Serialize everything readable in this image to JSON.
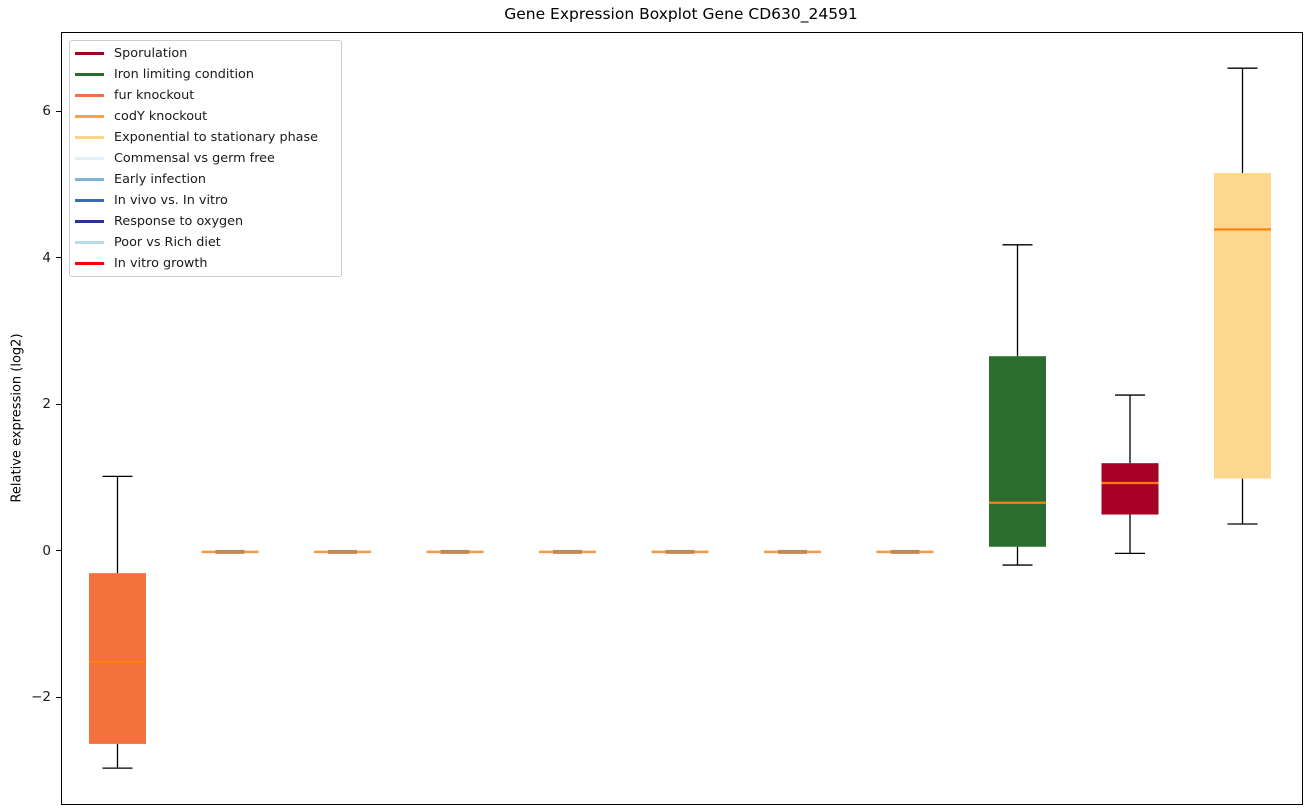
{
  "chart_data": {
    "type": "boxplot",
    "title": "Gene Expression Boxplot Gene CD630_24591",
    "ylabel": "Relative expression (log2)",
    "xlabel": "",
    "grid": false,
    "x_tick_labels": [],
    "ylim": [
      -3.44,
      7.08
    ],
    "yticks": [
      {
        "value": -2,
        "label": "−2"
      },
      {
        "value": 0,
        "label": "0"
      },
      {
        "value": 2,
        "label": "2"
      },
      {
        "value": 4,
        "label": "4"
      },
      {
        "value": 6,
        "label": "6"
      }
    ],
    "legend_position": "upper left",
    "legend": [
      {
        "label": "Sporulation",
        "color": "#a30026"
      },
      {
        "label": "Iron limiting condition",
        "color": "#2a6c2c"
      },
      {
        "label": "fur knockout",
        "color": "#f4703c"
      },
      {
        "label": "codY knockout",
        "color": "#f8a04b"
      },
      {
        "label": "Exponential to stationary phase",
        "color": "#fbd689"
      },
      {
        "label": "Commensal vs germ free",
        "color": "#e2eff7"
      },
      {
        "label": "Early infection",
        "color": "#7fb2d5"
      },
      {
        "label": "In vivo vs. In vitro",
        "color": "#3a6cb3"
      },
      {
        "label": "Response to oxygen",
        "color": "#2a3095"
      },
      {
        "label": "Poor vs Rich diet",
        "color": "#b7d9ec"
      },
      {
        "label": "In vitro growth",
        "color": "#fd0000"
      }
    ],
    "median_color": "#ff7f0e",
    "whisker_color": "#000000",
    "flat_box_style": {
      "line_color": "#f79843",
      "center_color": "#bf8a58"
    },
    "boxes": [
      {
        "position": 1,
        "condition": "fur knockout",
        "color": "#f4703c",
        "flat": false,
        "whisker_low": -2.95,
        "q1": -2.62,
        "median": -1.5,
        "q3": -0.29,
        "whisker_high": 1.03
      },
      {
        "position": 2,
        "condition": "",
        "color": "",
        "flat": true,
        "whisker_low": 0,
        "q1": 0,
        "median": 0,
        "q3": 0,
        "whisker_high": 0
      },
      {
        "position": 3,
        "condition": "",
        "color": "",
        "flat": true,
        "whisker_low": 0,
        "q1": 0,
        "median": 0,
        "q3": 0,
        "whisker_high": 0
      },
      {
        "position": 4,
        "condition": "",
        "color": "",
        "flat": true,
        "whisker_low": 0,
        "q1": 0,
        "median": 0,
        "q3": 0,
        "whisker_high": 0
      },
      {
        "position": 5,
        "condition": "",
        "color": "",
        "flat": true,
        "whisker_low": 0,
        "q1": 0,
        "median": 0,
        "q3": 0,
        "whisker_high": 0
      },
      {
        "position": 6,
        "condition": "",
        "color": "",
        "flat": true,
        "whisker_low": 0,
        "q1": 0,
        "median": 0,
        "q3": 0,
        "whisker_high": 0
      },
      {
        "position": 7,
        "condition": "",
        "color": "",
        "flat": true,
        "whisker_low": 0,
        "q1": 0,
        "median": 0,
        "q3": 0,
        "whisker_high": 0
      },
      {
        "position": 8,
        "condition": "",
        "color": "",
        "flat": true,
        "whisker_low": 0,
        "q1": 0,
        "median": 0,
        "q3": 0,
        "whisker_high": 0
      },
      {
        "position": 9,
        "condition": "Iron limiting condition",
        "color": "#2a6d2e",
        "flat": false,
        "whisker_low": -0.18,
        "q1": 0.07,
        "median": 0.67,
        "q3": 2.67,
        "whisker_high": 4.19
      },
      {
        "position": 10,
        "condition": "Sporulation",
        "color": "#a60027",
        "flat": false,
        "whisker_low": -0.02,
        "q1": 0.51,
        "median": 0.94,
        "q3": 1.21,
        "whisker_high": 2.14
      },
      {
        "position": 11,
        "condition": "Exponential to stationary phase",
        "color": "#fcd78c",
        "flat": false,
        "whisker_low": 0.38,
        "q1": 1.0,
        "median": 4.4,
        "q3": 5.17,
        "whisker_high": 6.6
      }
    ]
  }
}
